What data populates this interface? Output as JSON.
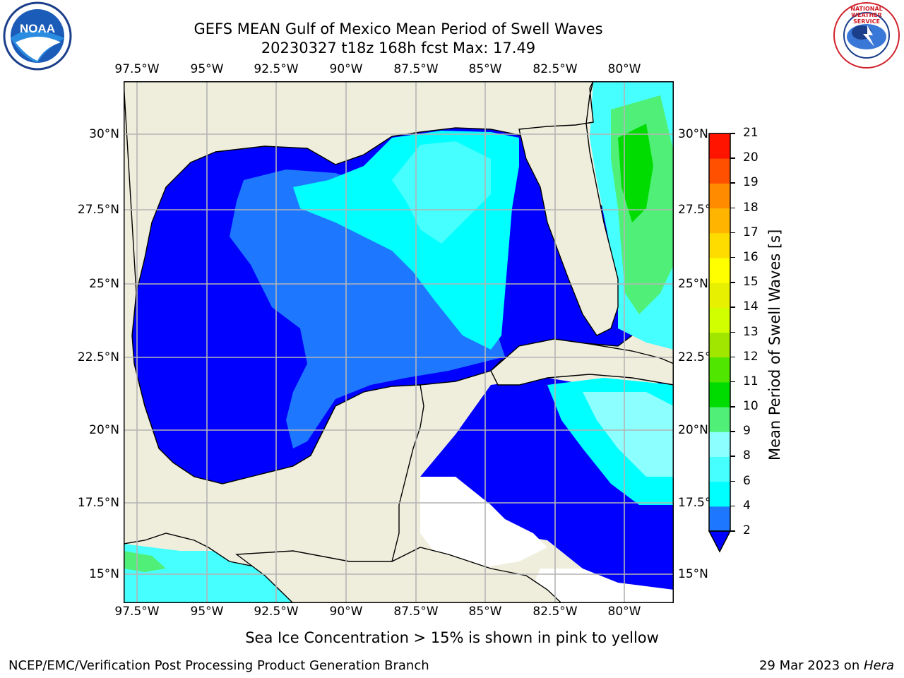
{
  "title": {
    "line1": "GEFS MEAN Gulf of Mexico Mean Period of Swell Waves",
    "line2": "20230327 t18z 168h fcst   Max: 17.49"
  },
  "logos": {
    "left": "NOAA",
    "right": "NATIONAL WEATHER SERVICE"
  },
  "axes": {
    "lon_labels": [
      "97.5°W",
      "95°W",
      "92.5°W",
      "90°W",
      "87.5°W",
      "85°W",
      "82.5°W",
      "80°W"
    ],
    "lat_labels": [
      "30°N",
      "27.5°N",
      "25°N",
      "22.5°N",
      "20°N",
      "17.5°N",
      "15°N"
    ],
    "lat_labels_right": [
      "30°N",
      "27.5°",
      "25°N",
      "22.5°",
      "20°N",
      "17.5°",
      "15°N"
    ]
  },
  "colorbar": {
    "title": "Mean Period of Swell Waves [s]",
    "ticks": [
      "2",
      "4",
      "6",
      "8",
      "9",
      "10",
      "11",
      "12",
      "13",
      "14",
      "15",
      "16",
      "17",
      "18",
      "19",
      "20",
      "21"
    ],
    "colors": [
      "#0000ff",
      "#1e78ff",
      "#00ffff",
      "#46ffff",
      "#8cffff",
      "#50f078",
      "#00dc00",
      "#50e600",
      "#a0e600",
      "#d2ff00",
      "#e6f000",
      "#ffff00",
      "#ffdc00",
      "#ffb400",
      "#ff8c00",
      "#ff5000",
      "#ff1400",
      "#ff0000"
    ]
  },
  "note": "Sea Ice Concentration > 15% is shown in pink to yellow",
  "footer": {
    "left": "NCEP/EMC/Verification Post Processing Product Generation Branch",
    "date": "29 Mar 2023 on ",
    "host": "Hera"
  }
}
